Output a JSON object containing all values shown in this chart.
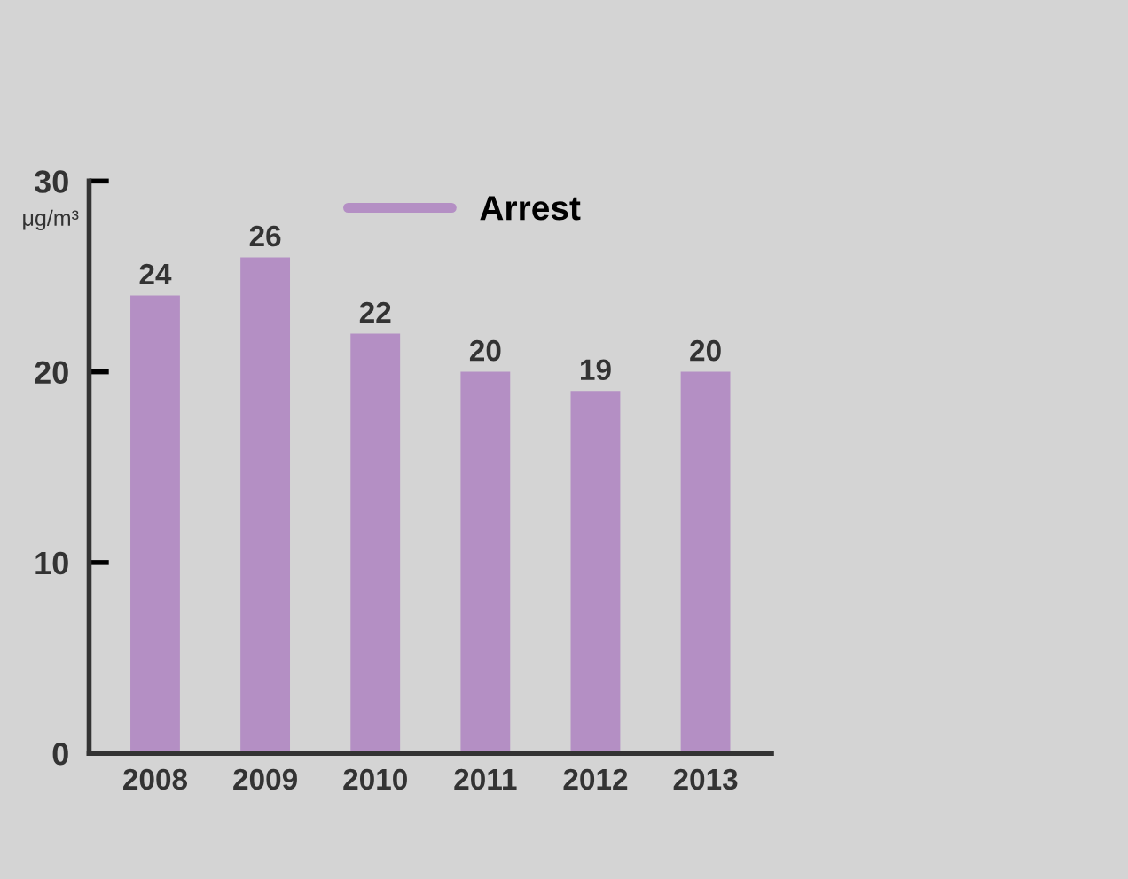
{
  "chart_data": {
    "type": "bar",
    "ylabel": "μg/m³",
    "categories": [
      "2008",
      "2009",
      "2010",
      "2011",
      "2012",
      "2013"
    ],
    "series": [
      {
        "name": "Arrest",
        "color": "#b48fc4",
        "values": [
          24,
          26,
          22,
          20,
          19,
          20
        ]
      }
    ],
    "ylim": [
      0,
      30
    ],
    "yticks": [
      0,
      10,
      20,
      30
    ],
    "grid": false,
    "legend": "top",
    "data_labels": true
  }
}
